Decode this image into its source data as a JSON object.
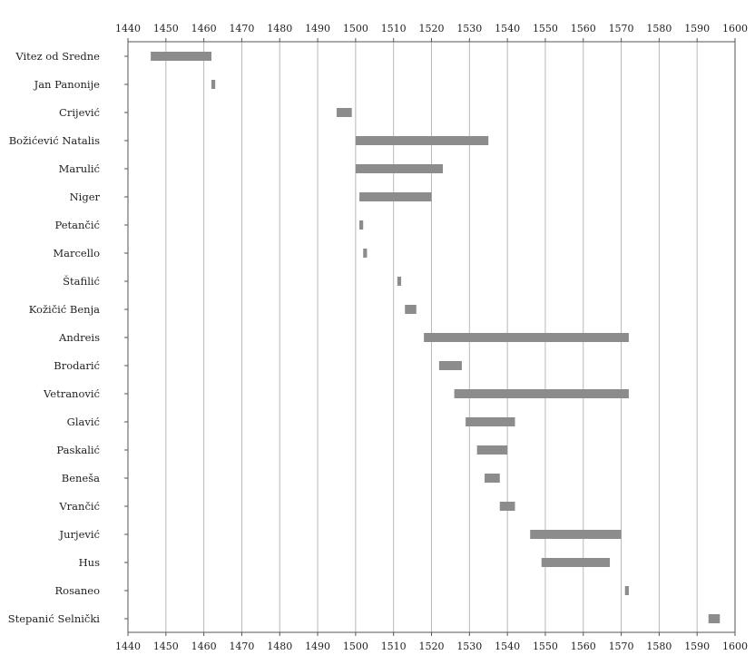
{
  "chart_data": {
    "type": "bar",
    "orientation": "horizontal",
    "title": "",
    "xlabel": "",
    "ylabel": "",
    "xlim": [
      1440,
      1600
    ],
    "x_ticks": [
      1440,
      1450,
      1460,
      1470,
      1480,
      1490,
      1500,
      1510,
      1520,
      1530,
      1540,
      1550,
      1560,
      1570,
      1580,
      1590,
      1600
    ],
    "x_tick_labels": [
      "1440",
      "1450",
      "1460",
      "1470",
      "1480",
      "1490",
      "1500",
      "1510",
      "1520",
      "1530",
      "1540",
      "1550",
      "1560",
      "1570",
      "1580",
      "1590",
      "1600"
    ],
    "grid": true,
    "legend": "none",
    "bar_color": "#8c8c8c",
    "grid_color": "#b8b8b8",
    "categories": [
      "Vitez od Sredne",
      "Jan Panonije",
      "Crijević",
      "Božićević Natalis",
      "Marulić",
      "Niger",
      "Petančić",
      "Marcello",
      "Štafilić",
      "Kožičić Benja",
      "Andreis",
      "Brodarić",
      "Vetranović",
      "Glavić",
      "Paskalić",
      "Beneša",
      "Vrančić",
      "Jurjević",
      "Hus",
      "Rosaneo",
      "Stepanić Selnički"
    ],
    "series": [
      {
        "start": [
          1446,
          1462,
          1495,
          1500,
          1500,
          1501,
          1501,
          1502,
          1511,
          1513,
          1518,
          1522,
          1526,
          1529,
          1532,
          1534,
          1538,
          1546,
          1549,
          1571,
          1593
        ],
        "end": [
          1462,
          1463,
          1499,
          1535,
          1523,
          1520,
          1502,
          1503,
          1512,
          1516,
          1572,
          1528,
          1572,
          1542,
          1540,
          1538,
          1542,
          1570,
          1567,
          1572,
          1596
        ]
      }
    ]
  }
}
